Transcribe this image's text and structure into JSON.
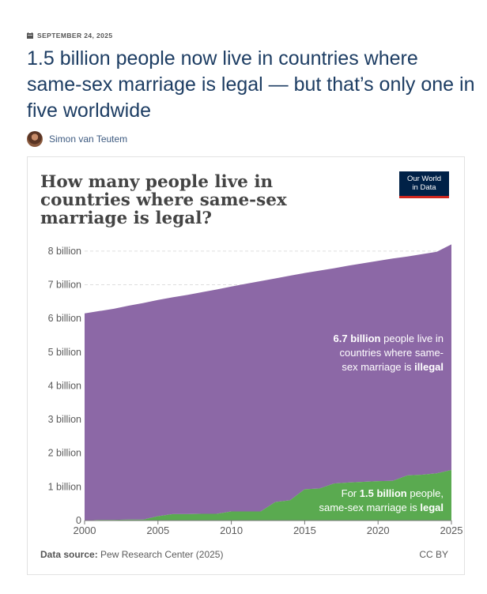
{
  "article": {
    "date": "SEPTEMBER 24, 2025",
    "headline": "1.5 billion people now live in countries where same-sex marriage is legal — but that’s only one in five worldwide",
    "author": "Simon van Teutem"
  },
  "logo": {
    "line1": "Our World",
    "line2": "in Data"
  },
  "footer": {
    "source_label": "Data source:",
    "source_value": "Pew Research Center (2025)",
    "license": "CC BY"
  },
  "colors": {
    "illegal": "#8c68a6",
    "legal": "#5aaa50",
    "text": "#5b5b5b",
    "navy": "#1d3d63"
  },
  "chart_data": {
    "type": "area",
    "stacked": true,
    "title": "How many people live in countries where same-sex marriage is legal?",
    "x": [
      2000,
      2001,
      2002,
      2003,
      2004,
      2005,
      2006,
      2007,
      2008,
      2009,
      2010,
      2011,
      2012,
      2013,
      2014,
      2015,
      2016,
      2017,
      2018,
      2019,
      2020,
      2021,
      2022,
      2023,
      2024,
      2025
    ],
    "series": [
      {
        "key": "legal",
        "values": [
          0,
          0.02,
          0.02,
          0.03,
          0.03,
          0.13,
          0.19,
          0.19,
          0.2,
          0.2,
          0.27,
          0.27,
          0.27,
          0.55,
          0.6,
          0.93,
          0.95,
          1.1,
          1.13,
          1.15,
          1.17,
          1.18,
          1.34,
          1.36,
          1.4,
          1.5
        ]
      },
      {
        "key": "illegal",
        "values": [
          6.15,
          6.2,
          6.27,
          6.35,
          6.43,
          6.42,
          6.44,
          6.51,
          6.58,
          6.66,
          6.68,
          6.76,
          6.84,
          6.64,
          6.67,
          6.42,
          6.47,
          6.39,
          6.44,
          6.49,
          6.54,
          6.6,
          6.5,
          6.55,
          6.58,
          6.7
        ]
      }
    ],
    "xticks": [
      2000,
      2005,
      2010,
      2015,
      2020,
      2025
    ],
    "yticks": [
      0,
      1,
      2,
      3,
      4,
      5,
      6,
      7,
      8
    ],
    "ytick_labels": [
      "0",
      "1 billion",
      "2 billion",
      "3 billion",
      "4 billion",
      "5 billion",
      "6 billion",
      "7 billion",
      "8 billion"
    ],
    "ylim": [
      0,
      8.35
    ],
    "xlim": [
      2000,
      2025
    ],
    "grid": true,
    "annotations": {
      "illegal": {
        "lines": [
          [
            {
              "t": "6.7 billion",
              "b": true
            },
            {
              "t": " people live in",
              "b": false
            }
          ],
          [
            {
              "t": "countries where same-",
              "b": false
            }
          ],
          [
            {
              "t": "sex marriage is ",
              "b": false
            },
            {
              "t": "illegal",
              "b": true
            }
          ]
        ]
      },
      "legal": {
        "lines": [
          [
            {
              "t": "For ",
              "b": false
            },
            {
              "t": "1.5 billion",
              "b": true
            },
            {
              "t": " people,",
              "b": false
            }
          ],
          [
            {
              "t": "same-sex marriage is ",
              "b": false
            },
            {
              "t": "legal",
              "b": true
            }
          ]
        ]
      }
    }
  }
}
